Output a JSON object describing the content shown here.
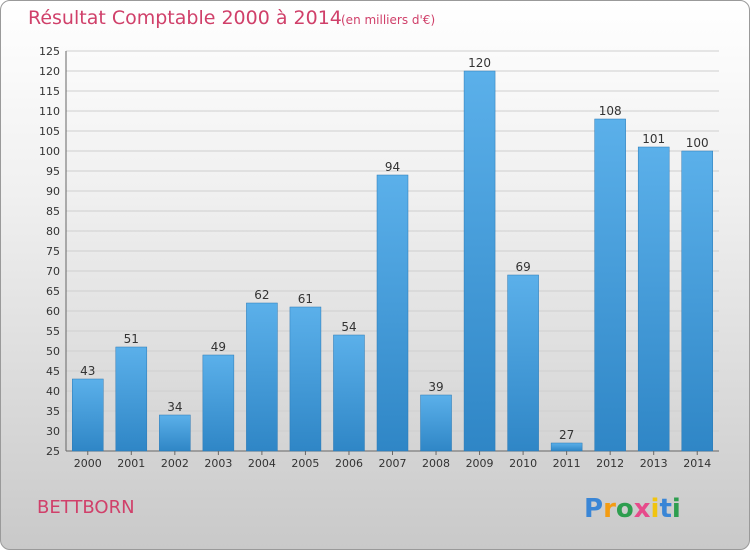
{
  "header": {
    "title": "Résultat Comptable 2000 à 2014",
    "subtitle": "(en milliers d'€)"
  },
  "footer": {
    "commune": "BETTBORN",
    "logo_text": "Proxiti"
  },
  "colors": {
    "title": "#d0406a",
    "bar_light": "#5bb0ea",
    "bar_dark": "#2f86c6",
    "grid": "#cfcfcf"
  },
  "chart_data": {
    "type": "bar",
    "categories": [
      "2000",
      "2001",
      "2002",
      "2003",
      "2004",
      "2005",
      "2006",
      "2007",
      "2008",
      "2009",
      "2010",
      "2011",
      "2012",
      "2013",
      "2014"
    ],
    "values": [
      43,
      51,
      34,
      49,
      62,
      61,
      54,
      94,
      39,
      120,
      69,
      27,
      108,
      101,
      100
    ],
    "ylim": [
      25,
      125
    ],
    "yticks": [
      25,
      30,
      35,
      40,
      45,
      50,
      55,
      60,
      65,
      70,
      75,
      80,
      85,
      90,
      95,
      100,
      105,
      110,
      115,
      120,
      125
    ],
    "grid": true,
    "data_labels": true
  }
}
